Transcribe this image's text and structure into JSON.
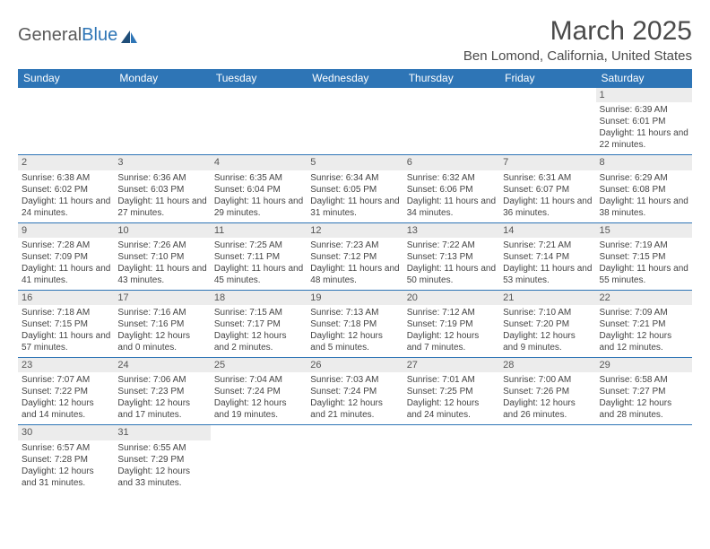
{
  "logo": {
    "part1": "General",
    "part2": "Blue"
  },
  "title": "March 2025",
  "location": "Ben Lomond, California, United States",
  "colors": {
    "header_bg": "#2e75b6",
    "header_text": "#ffffff",
    "daynum_bg": "#ececec",
    "border": "#2e75b6",
    "text": "#444444"
  },
  "weekdays": [
    "Sunday",
    "Monday",
    "Tuesday",
    "Wednesday",
    "Thursday",
    "Friday",
    "Saturday"
  ],
  "weeks": [
    [
      null,
      null,
      null,
      null,
      null,
      null,
      {
        "n": "1",
        "sr": "6:39 AM",
        "ss": "6:01 PM",
        "dl": "11 hours and 22 minutes."
      }
    ],
    [
      {
        "n": "2",
        "sr": "6:38 AM",
        "ss": "6:02 PM",
        "dl": "11 hours and 24 minutes."
      },
      {
        "n": "3",
        "sr": "6:36 AM",
        "ss": "6:03 PM",
        "dl": "11 hours and 27 minutes."
      },
      {
        "n": "4",
        "sr": "6:35 AM",
        "ss": "6:04 PM",
        "dl": "11 hours and 29 minutes."
      },
      {
        "n": "5",
        "sr": "6:34 AM",
        "ss": "6:05 PM",
        "dl": "11 hours and 31 minutes."
      },
      {
        "n": "6",
        "sr": "6:32 AM",
        "ss": "6:06 PM",
        "dl": "11 hours and 34 minutes."
      },
      {
        "n": "7",
        "sr": "6:31 AM",
        "ss": "6:07 PM",
        "dl": "11 hours and 36 minutes."
      },
      {
        "n": "8",
        "sr": "6:29 AM",
        "ss": "6:08 PM",
        "dl": "11 hours and 38 minutes."
      }
    ],
    [
      {
        "n": "9",
        "sr": "7:28 AM",
        "ss": "7:09 PM",
        "dl": "11 hours and 41 minutes."
      },
      {
        "n": "10",
        "sr": "7:26 AM",
        "ss": "7:10 PM",
        "dl": "11 hours and 43 minutes."
      },
      {
        "n": "11",
        "sr": "7:25 AM",
        "ss": "7:11 PM",
        "dl": "11 hours and 45 minutes."
      },
      {
        "n": "12",
        "sr": "7:23 AM",
        "ss": "7:12 PM",
        "dl": "11 hours and 48 minutes."
      },
      {
        "n": "13",
        "sr": "7:22 AM",
        "ss": "7:13 PM",
        "dl": "11 hours and 50 minutes."
      },
      {
        "n": "14",
        "sr": "7:21 AM",
        "ss": "7:14 PM",
        "dl": "11 hours and 53 minutes."
      },
      {
        "n": "15",
        "sr": "7:19 AM",
        "ss": "7:15 PM",
        "dl": "11 hours and 55 minutes."
      }
    ],
    [
      {
        "n": "16",
        "sr": "7:18 AM",
        "ss": "7:15 PM",
        "dl": "11 hours and 57 minutes."
      },
      {
        "n": "17",
        "sr": "7:16 AM",
        "ss": "7:16 PM",
        "dl": "12 hours and 0 minutes."
      },
      {
        "n": "18",
        "sr": "7:15 AM",
        "ss": "7:17 PM",
        "dl": "12 hours and 2 minutes."
      },
      {
        "n": "19",
        "sr": "7:13 AM",
        "ss": "7:18 PM",
        "dl": "12 hours and 5 minutes."
      },
      {
        "n": "20",
        "sr": "7:12 AM",
        "ss": "7:19 PM",
        "dl": "12 hours and 7 minutes."
      },
      {
        "n": "21",
        "sr": "7:10 AM",
        "ss": "7:20 PM",
        "dl": "12 hours and 9 minutes."
      },
      {
        "n": "22",
        "sr": "7:09 AM",
        "ss": "7:21 PM",
        "dl": "12 hours and 12 minutes."
      }
    ],
    [
      {
        "n": "23",
        "sr": "7:07 AM",
        "ss": "7:22 PM",
        "dl": "12 hours and 14 minutes."
      },
      {
        "n": "24",
        "sr": "7:06 AM",
        "ss": "7:23 PM",
        "dl": "12 hours and 17 minutes."
      },
      {
        "n": "25",
        "sr": "7:04 AM",
        "ss": "7:24 PM",
        "dl": "12 hours and 19 minutes."
      },
      {
        "n": "26",
        "sr": "7:03 AM",
        "ss": "7:24 PM",
        "dl": "12 hours and 21 minutes."
      },
      {
        "n": "27",
        "sr": "7:01 AM",
        "ss": "7:25 PM",
        "dl": "12 hours and 24 minutes."
      },
      {
        "n": "28",
        "sr": "7:00 AM",
        "ss": "7:26 PM",
        "dl": "12 hours and 26 minutes."
      },
      {
        "n": "29",
        "sr": "6:58 AM",
        "ss": "7:27 PM",
        "dl": "12 hours and 28 minutes."
      }
    ],
    [
      {
        "n": "30",
        "sr": "6:57 AM",
        "ss": "7:28 PM",
        "dl": "12 hours and 31 minutes."
      },
      {
        "n": "31",
        "sr": "6:55 AM",
        "ss": "7:29 PM",
        "dl": "12 hours and 33 minutes."
      },
      null,
      null,
      null,
      null,
      null
    ]
  ],
  "labels": {
    "sunrise": "Sunrise:",
    "sunset": "Sunset:",
    "daylight": "Daylight:"
  }
}
